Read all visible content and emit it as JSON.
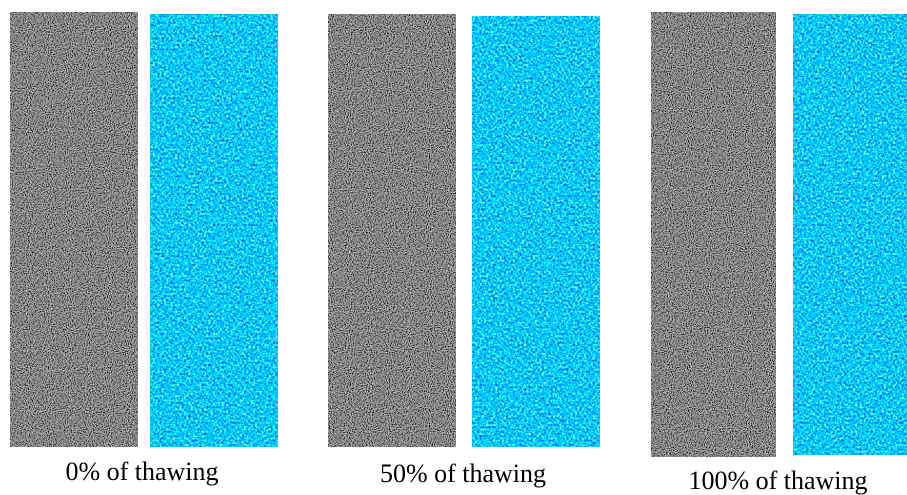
{
  "panels": [
    {
      "caption": "0% of thawing"
    },
    {
      "caption": "50% of thawing"
    },
    {
      "caption": "100% of thawing"
    }
  ]
}
